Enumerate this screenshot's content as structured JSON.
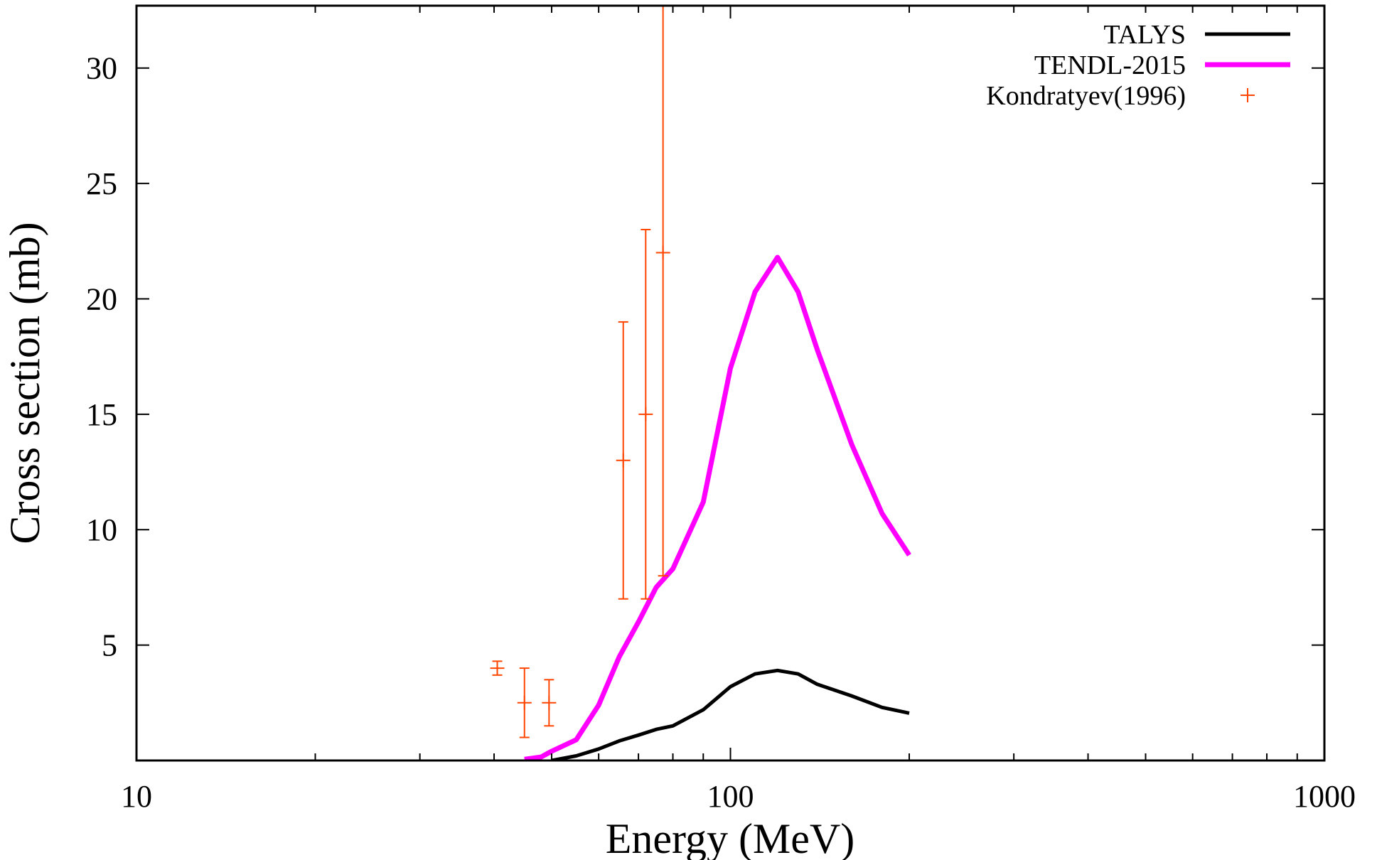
{
  "chart_data": {
    "type": "line",
    "xlabel": "Energy (MeV)",
    "ylabel": "Cross section (mb)",
    "xscale": "log",
    "xlim": [
      10,
      1000
    ],
    "ylim": [
      0,
      32.7
    ],
    "x_ticks": [
      10,
      100,
      1000
    ],
    "x_tick_labels": [
      "10",
      "100",
      "1000"
    ],
    "y_ticks": [
      5,
      10,
      15,
      20,
      25,
      30
    ],
    "y_tick_labels": [
      "5",
      "10",
      "15",
      "20",
      "25",
      "30"
    ],
    "grid": false,
    "legend_position": "top-right",
    "series": [
      {
        "name": "TALYS",
        "color": "#000000",
        "style": "line",
        "x": [
          50,
          55,
          60,
          65,
          70,
          75,
          80,
          90,
          100,
          110,
          120,
          130,
          140,
          160,
          180,
          200
        ],
        "y": [
          0.0,
          0.2,
          0.5,
          0.85,
          1.1,
          1.35,
          1.5,
          2.2,
          3.2,
          3.75,
          3.9,
          3.75,
          3.3,
          2.8,
          2.3,
          2.05
        ]
      },
      {
        "name": "TENDL-2015",
        "color": "#ff00ff",
        "style": "line",
        "x": [
          45,
          48,
          50,
          55,
          60,
          65,
          70,
          75,
          80,
          90,
          100,
          110,
          120,
          130,
          140,
          160,
          180,
          200
        ],
        "y": [
          0.05,
          0.15,
          0.4,
          0.9,
          2.4,
          4.5,
          6.0,
          7.5,
          8.3,
          11.2,
          17.0,
          20.3,
          21.8,
          20.3,
          17.8,
          13.7,
          10.7,
          8.9
        ]
      },
      {
        "name": "Kondratyev(1996)",
        "color": "#ff4500",
        "style": "points-errorbars",
        "x": [
          40.5,
          45,
          49.5,
          66,
          72,
          77
        ],
        "y": [
          4.0,
          2.5,
          2.5,
          13.0,
          15.0,
          22.0
        ],
        "yerr": [
          0.3,
          1.5,
          1.0,
          6.0,
          8.0,
          14.0
        ]
      }
    ]
  }
}
